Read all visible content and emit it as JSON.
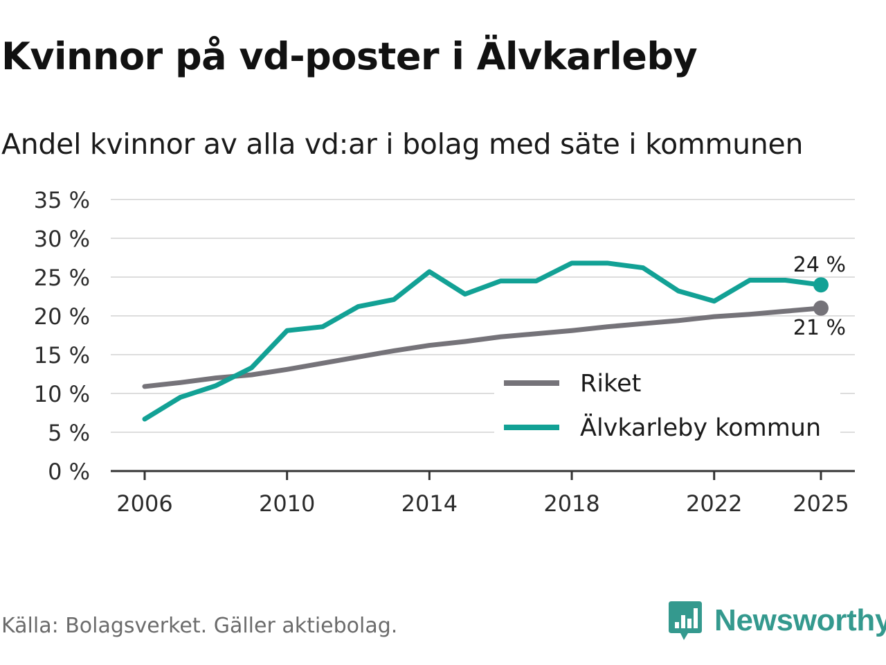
{
  "title": "Kvinnor på vd-poster i Älvkarleby",
  "subtitle": "Andel kvinnor av alla vd:ar i bolag med säte i kommunen",
  "source": "Källa: Bolagsverket. Gäller aktiebolag.",
  "brand": "Newsworthy",
  "brand_icon": "newsworthy-logo-icon",
  "colors": {
    "riket": "#757379",
    "kommun": "#12a195",
    "grid": "#dddddd",
    "axis": "#333333",
    "brand": "#34998e"
  },
  "chart_data": {
    "type": "line",
    "title": "Kvinnor på vd-poster i Älvkarleby",
    "subtitle": "Andel kvinnor av alla vd:ar i bolag med säte i kommunen",
    "xlabel": "",
    "ylabel": "",
    "x": [
      2006,
      2007,
      2008,
      2009,
      2010,
      2011,
      2012,
      2013,
      2014,
      2015,
      2016,
      2017,
      2018,
      2019,
      2020,
      2021,
      2022,
      2023,
      2024,
      2025
    ],
    "xticks": [
      "2006",
      "2010",
      "2014",
      "2018",
      "2022",
      "2025"
    ],
    "yticks": [
      "0 %",
      "5 %",
      "10 %",
      "15 %",
      "20 %",
      "25 %",
      "30 %",
      "35 %"
    ],
    "ylim": [
      0,
      35
    ],
    "grid": true,
    "legend_position": "bottom-right",
    "series": [
      {
        "name": "Riket",
        "key": "riket",
        "values": [
          10.9,
          11.4,
          12.0,
          12.4,
          13.1,
          13.9,
          14.7,
          15.5,
          16.2,
          16.7,
          17.3,
          17.7,
          18.1,
          18.6,
          19.0,
          19.4,
          19.9,
          20.2,
          20.6,
          21.0
        ],
        "end_label": "21 %"
      },
      {
        "name": "Älvkarleby kommun",
        "key": "kommun",
        "values": [
          6.7,
          9.5,
          11.0,
          13.3,
          18.1,
          18.6,
          21.2,
          22.1,
          25.7,
          22.8,
          24.5,
          24.5,
          26.8,
          26.8,
          26.2,
          23.2,
          21.9,
          24.6,
          24.6,
          24.0
        ],
        "end_label": "24 %"
      }
    ]
  }
}
